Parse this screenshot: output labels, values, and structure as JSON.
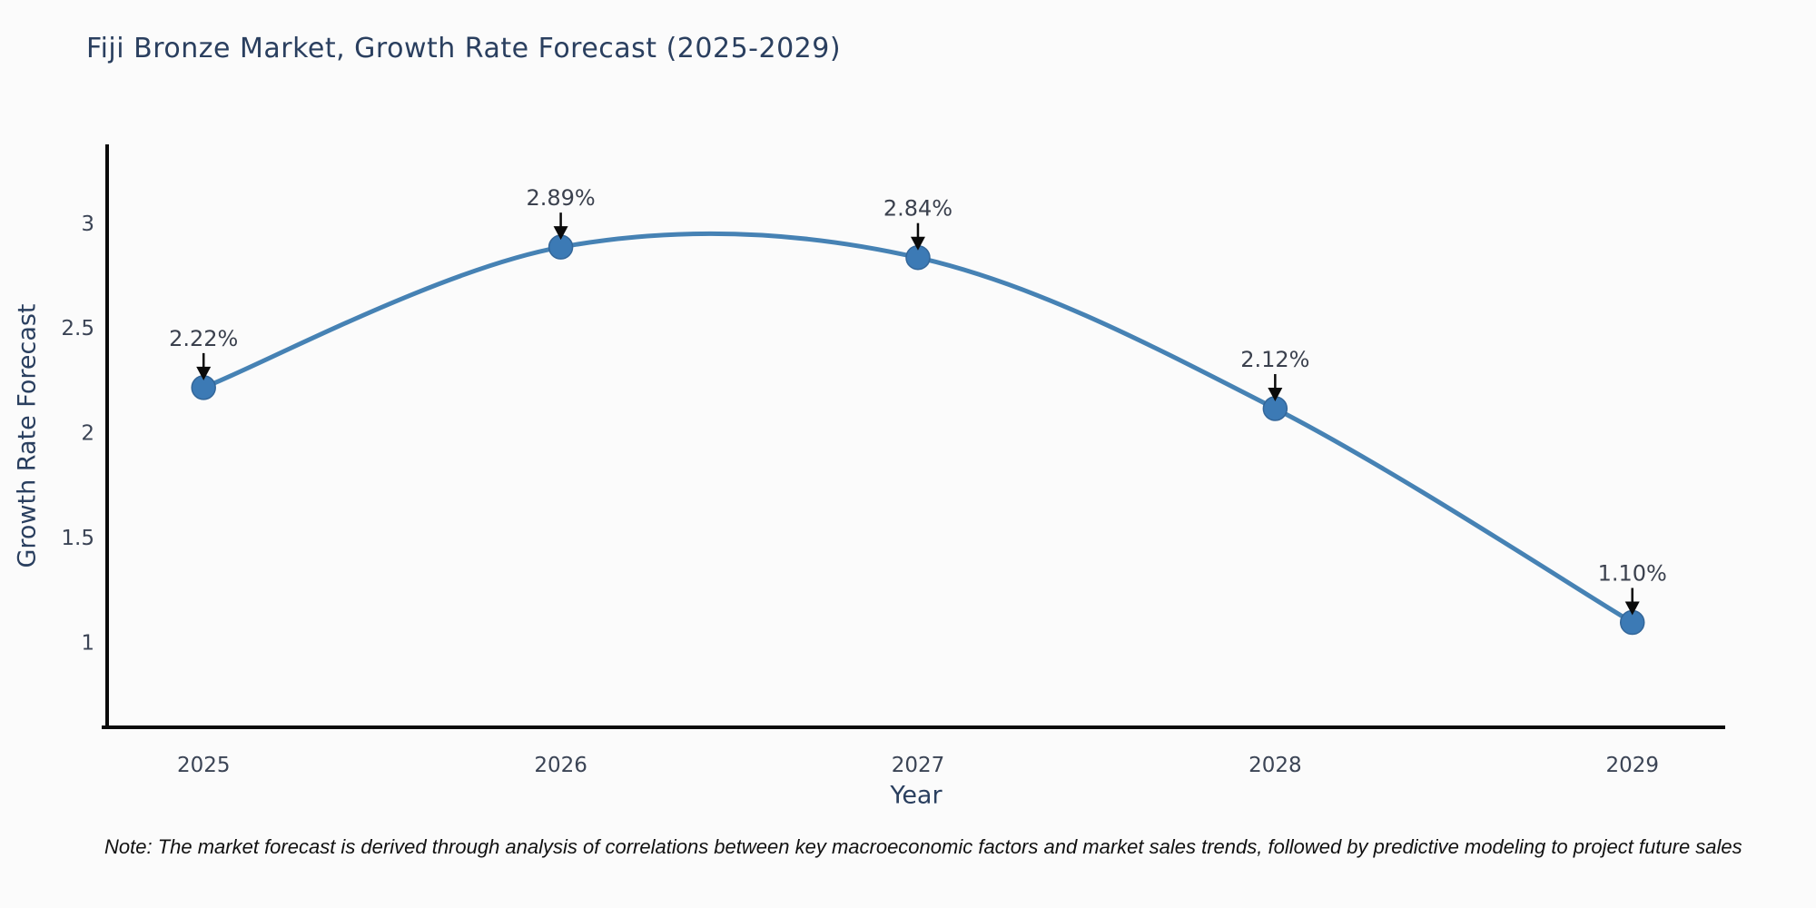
{
  "chart": {
    "title": "Fiji Bronze Market, Growth Rate Forecast (2025-2029)",
    "xlabel": "Year",
    "ylabel": "Growth Rate Forecast"
  },
  "chart_data": {
    "type": "line",
    "title": "Fiji Bronze Market, Growth Rate Forecast (2025-2029)",
    "xlabel": "Year",
    "ylabel": "Growth Rate Forecast",
    "categories": [
      "2025",
      "2026",
      "2027",
      "2028",
      "2029"
    ],
    "x": [
      2025,
      2026,
      2027,
      2028,
      2029
    ],
    "values": [
      2.22,
      2.89,
      2.84,
      2.12,
      1.1
    ],
    "point_labels": [
      "2.22%",
      "2.89%",
      "2.84%",
      "2.12%",
      "1.10%"
    ],
    "yticks": [
      1,
      1.5,
      2,
      2.5,
      3
    ],
    "ytick_labels": [
      "1",
      "1.5",
      "2",
      "2.5",
      "3"
    ],
    "xlim": [
      2024.73,
      2029.26
    ],
    "ylim": [
      0.6,
      3.38
    ],
    "grid": false,
    "legend": "none",
    "smooth": true,
    "line_color": "#4682b4",
    "marker_color": "#3c7ab5",
    "marker_edge_color": "#336699",
    "annotation_color": "#0a0a0a",
    "annotation_text_color": "#3b414e"
  },
  "note": {
    "text": "Note: The market forecast is derived through analysis of correlations between key macroeconomic factors and market sales trends, followed by predictive modeling to project future sales"
  },
  "colors": {
    "title": "#2a3f5f",
    "axis_label": "#2a3f5f",
    "tick_label": "#3b4455",
    "spine": "#0b0b0b",
    "background": "#fbfbfb"
  }
}
